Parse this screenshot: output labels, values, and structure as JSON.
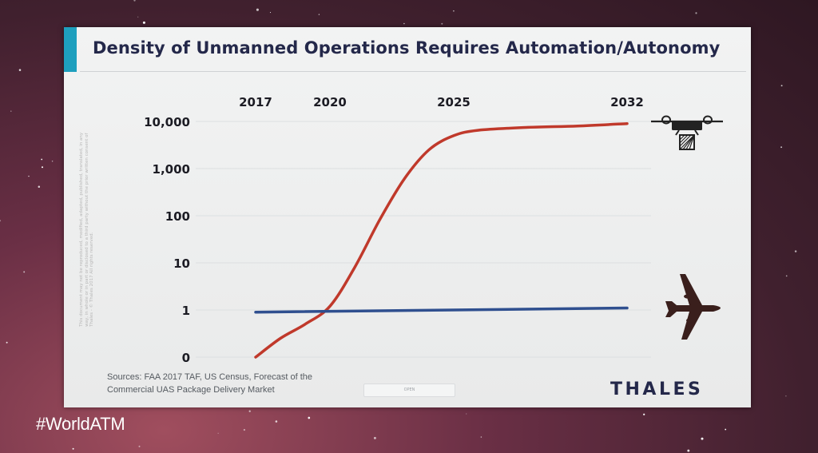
{
  "slide": {
    "title": "Density of Unmanned Operations Requires Automation/Autonomy",
    "sources_line1": "Sources: FAA 2017 TAF, US Census, Forecast of the",
    "sources_line2": "Commercial UAS Package Delivery Market",
    "open_label": "OPEN",
    "logo": "THALES",
    "side_note": "This document may not be reproduced, modified, adapted, published, translated, in any way, in whole or in part or disclosed to a third party without the prior written consent of Thales - © Thales 2017 All rights reserved."
  },
  "footer": {
    "hashtag": "#WorldATM"
  },
  "colors": {
    "unmanned": "#c0392b",
    "manned": "#2f4f8f",
    "title": "#24284a",
    "accent": "#1e9fbe"
  },
  "chart_data": {
    "type": "line",
    "title": "Density of Unmanned Operations Requires Automation/Autonomy",
    "x_categories": [
      "2017",
      "2020",
      "2025",
      "2032"
    ],
    "y_ticks": [
      "10,000",
      "1,000",
      "100",
      "10",
      "1",
      "0"
    ],
    "y_scale": "log",
    "grid": true,
    "series": [
      {
        "icon": "drone-icon",
        "color": "#c0392b",
        "x": [
          2017,
          2018,
          2019,
          2020,
          2021,
          2022,
          2023,
          2024,
          2025,
          2026,
          2028,
          2030,
          2032
        ],
        "y": [
          0,
          0.25,
          0.5,
          1.2,
          8,
          80,
          600,
          2500,
          5000,
          6500,
          7500,
          8000,
          9000
        ]
      },
      {
        "icon": "airplane-icon",
        "color": "#2f4f8f",
        "x": [
          2017,
          2032
        ],
        "y": [
          0.9,
          1.1
        ]
      }
    ]
  }
}
